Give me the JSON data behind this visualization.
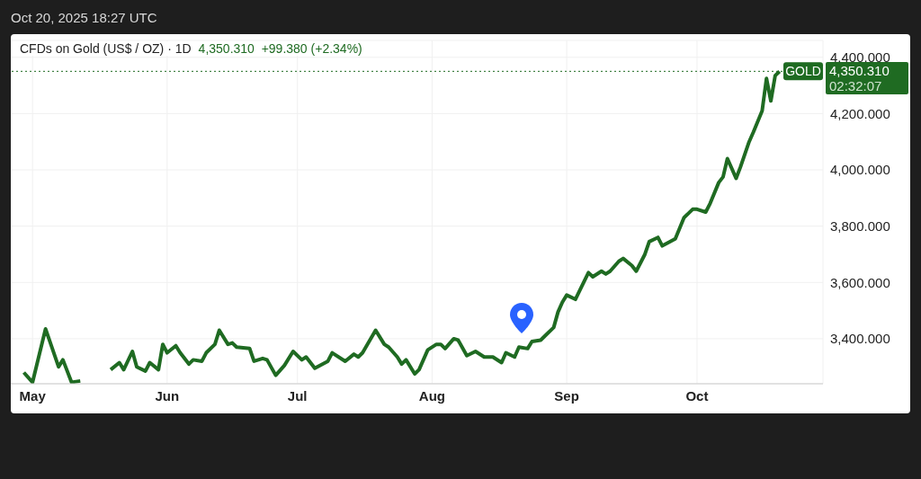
{
  "chart_data": {
    "type": "line",
    "title": "CFDs on Gold (US$ / OZ) · 1D",
    "subtitle": "4,350.310  +99.380 (+2.34%)",
    "annotations": [
      "Oct 20, 2025 18:27 UTC",
      "4,350.310",
      "02:32:07"
    ],
    "x": [
      "2025-04-29",
      "2025-05-01",
      "2025-05-04",
      "2025-05-07",
      "2025-05-08",
      "2025-05-10",
      "2025-05-12",
      "2025-05-15",
      "2025-05-18",
      "2025-05-19",
      "2025-05-21",
      "2025-05-22",
      "2025-05-24",
      "2025-05-25",
      "2025-05-27",
      "2025-05-28",
      "2025-05-30",
      "2025-05-31",
      "2025-06-01",
      "2025-06-03",
      "2025-06-04",
      "2025-06-06",
      "2025-06-07",
      "2025-06-09",
      "2025-06-10",
      "2025-06-12",
      "2025-06-13",
      "2025-06-15",
      "2025-06-16",
      "2025-06-17",
      "2025-06-20",
      "2025-06-21",
      "2025-06-23",
      "2025-06-24",
      "2025-06-26",
      "2025-06-28",
      "2025-06-30",
      "2025-07-02",
      "2025-07-03",
      "2025-07-05",
      "2025-07-08",
      "2025-07-09",
      "2025-07-12",
      "2025-07-14",
      "2025-07-15",
      "2025-07-16",
      "2025-07-19",
      "2025-07-21",
      "2025-07-22",
      "2025-07-24",
      "2025-07-25",
      "2025-07-26",
      "2025-07-28",
      "2025-07-29",
      "2025-07-31",
      "2025-08-02",
      "2025-08-03",
      "2025-08-04",
      "2025-08-06",
      "2025-08-07",
      "2025-08-09",
      "2025-08-11",
      "2025-08-13",
      "2025-08-15",
      "2025-08-17",
      "2025-08-18",
      "2025-08-20",
      "2025-08-21",
      "2025-08-23",
      "2025-08-24",
      "2025-08-26",
      "2025-08-27",
      "2025-08-29",
      "2025-08-30",
      "2025-08-31",
      "2025-09-01",
      "2025-09-03",
      "2025-09-06",
      "2025-09-07",
      "2025-09-09",
      "2025-09-10",
      "2025-09-11",
      "2025-09-13",
      "2025-09-14",
      "2025-09-16",
      "2025-09-17",
      "2025-09-19",
      "2025-09-20",
      "2025-09-22",
      "2025-09-23",
      "2025-09-26",
      "2025-09-28",
      "2025-09-30",
      "2025-10-01",
      "2025-10-03",
      "2025-10-04",
      "2025-10-06",
      "2025-10-07",
      "2025-10-08",
      "2025-10-10",
      "2025-10-11",
      "2025-10-13",
      "2025-10-14",
      "2025-10-16",
      "2025-10-17",
      "2025-10-18",
      "2025-10-19",
      "2025-10-20"
    ],
    "series": [
      {
        "color": "#1f6b22",
        "values": [
          3280,
          3245,
          3435,
          3300,
          3325,
          3245,
          3250,
          null,
          null,
          3290,
          3315,
          3290,
          3355,
          3300,
          3285,
          3315,
          3290,
          3380,
          3350,
          3375,
          3350,
          3310,
          3325,
          3320,
          3350,
          3380,
          3430,
          3380,
          3385,
          3370,
          3365,
          3320,
          3330,
          3325,
          3270,
          3305,
          3355,
          3325,
          3335,
          3295,
          3320,
          3350,
          3320,
          3345,
          3335,
          3350,
          3430,
          3380,
          3370,
          3335,
          3310,
          3325,
          3275,
          3290,
          3360,
          3380,
          3380,
          3365,
          3400,
          3395,
          3340,
          3355,
          3335,
          3335,
          3315,
          3350,
          3335,
          3370,
          3365,
          3390,
          3395,
          3410,
          3440,
          3495,
          3530,
          3555,
          3540,
          3635,
          3620,
          3640,
          3630,
          3640,
          3675,
          3685,
          3660,
          3640,
          3700,
          3745,
          3760,
          3730,
          3755,
          3830,
          3860,
          3860,
          3850,
          3880,
          3955,
          3975,
          4040,
          3970,
          4010,
          4100,
          4135,
          4210,
          4325,
          4245,
          4335,
          4350
        ]
      }
    ],
    "xlim": [
      "2025-04-26",
      "2025-10-30"
    ],
    "xticks": [
      {
        "value": "2025-05-01",
        "label": "May"
      },
      {
        "value": "2025-06-01",
        "label": "Jun"
      },
      {
        "value": "2025-07-01",
        "label": "Jul"
      },
      {
        "value": "2025-08-01",
        "label": "Aug"
      },
      {
        "value": "2025-09-01",
        "label": "Sep"
      },
      {
        "value": "2025-10-01",
        "label": "Oct"
      }
    ],
    "ylim": [
      3240,
      4460
    ],
    "yticks": [
      {
        "value": 3400,
        "label": "3,400.000"
      },
      {
        "value": 3600,
        "label": "3,600.000"
      },
      {
        "value": 3800,
        "label": "3,800.000"
      },
      {
        "value": 4000,
        "label": "4,000.000"
      },
      {
        "value": 4200,
        "label": "4,200.000"
      },
      {
        "value": 4400,
        "label": "4,400.000"
      }
    ],
    "ref_lines": [
      {
        "axis": "y",
        "value": 4350.31,
        "label": "GOLD",
        "color": "#1f6b22",
        "line_style": "dotted"
      }
    ],
    "grid": true,
    "marker": "none",
    "line_style": "solid"
  }
}
